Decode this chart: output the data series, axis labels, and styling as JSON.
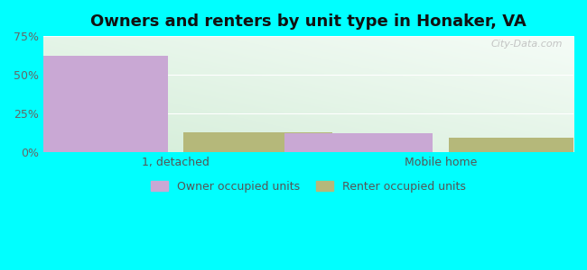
{
  "title": "Owners and renters by unit type in Honaker, VA",
  "categories": [
    "1, detached",
    "Mobile home"
  ],
  "owner_values": [
    62,
    12
  ],
  "renter_values": [
    13,
    9
  ],
  "owner_color": "#c9a8d4",
  "renter_color": "#b5b87a",
  "bar_width": 0.28,
  "group_positions": [
    0.25,
    0.75
  ],
  "xlim": [
    0,
    1
  ],
  "ylim": [
    0,
    75
  ],
  "yticks": [
    0,
    25,
    50,
    75
  ],
  "yticklabels": [
    "0%",
    "25%",
    "50%",
    "75%"
  ],
  "outer_bg": "#00ffff",
  "plot_bg_colors": [
    "#d4edd8",
    "#f0faf4"
  ],
  "watermark": "City-Data.com",
  "legend_labels": [
    "Owner occupied units",
    "Renter occupied units"
  ],
  "title_fontsize": 13,
  "tick_fontsize": 9,
  "legend_fontsize": 9
}
